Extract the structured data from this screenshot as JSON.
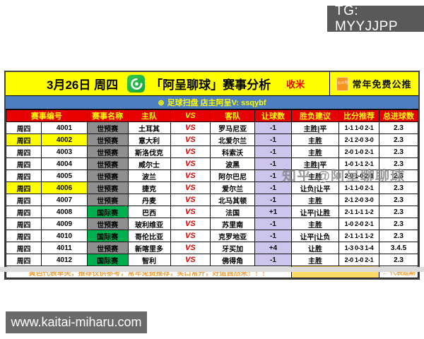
{
  "page": {
    "tg_badge": "TG: MYYJJPP",
    "site_badge": "www.kaitai-miharu.com",
    "watermark": "知乎 @阿呈聊聊球"
  },
  "header": {
    "date": "3月26日 周四",
    "logo": "football-swirl-logo",
    "title": "「阿呈聊球」赛事分析",
    "tag": "收米",
    "official_icon_label": "公众号",
    "right_label": "常年免费公推"
  },
  "subheader": {
    "icon": "⊛",
    "text": "足球扫盘   店主阿呈V: ssqybf"
  },
  "table": {
    "vs_label": "VS",
    "headers": {
      "match_no": "赛事编号",
      "league": "赛事名称",
      "home": "主队",
      "vs": "VS",
      "away": "客队",
      "handicap": "让球数",
      "advice": "胜负建议",
      "score": "比分推荐",
      "goals": "总进球数"
    },
    "rows": [
      {
        "day": "周四",
        "id": "4001",
        "category": "世预赛",
        "category_type": "gray",
        "home": "土耳其",
        "away": "罗马尼亚",
        "handicap": "-1",
        "advice": "主胜|平",
        "score": "1-1 1-0 2-1",
        "goals": "2.3",
        "highlight": false
      },
      {
        "day": "周四",
        "id": "4002",
        "category": "世预赛",
        "category_type": "gray",
        "home": "意大利",
        "away": "北爱尔兰",
        "handicap": "-1",
        "advice": "主胜",
        "score": "2-1 2-0 3-0",
        "goals": "2.3",
        "highlight": true
      },
      {
        "day": "周四",
        "id": "4003",
        "category": "世预赛",
        "category_type": "gray",
        "home": "斯洛伐克",
        "away": "科索沃",
        "handicap": "-1",
        "advice": "主胜",
        "score": "2-0 1-0 2-1",
        "goals": "2.3",
        "highlight": false
      },
      {
        "day": "周四",
        "id": "4004",
        "category": "世预赛",
        "category_type": "gray",
        "home": "威尔士",
        "away": "波黑",
        "handicap": "-1",
        "advice": "主胜|平",
        "score": "1-0 1-1 2-1",
        "goals": "2.3",
        "highlight": false
      },
      {
        "day": "周四",
        "id": "4005",
        "category": "世预赛",
        "category_type": "gray",
        "home": "波兰",
        "away": "阿尔巴尼",
        "handicap": "-1",
        "advice": "主胜",
        "score": "2-0 1-0 2-1",
        "goals": "2.3",
        "highlight": false
      },
      {
        "day": "周四",
        "id": "4006",
        "category": "世预赛",
        "category_type": "gray",
        "home": "捷克",
        "away": "爱尔兰",
        "handicap": "-1",
        "advice": "让负|让平",
        "score": "1-1 1-0 2-1",
        "goals": "2.3",
        "highlight": true
      },
      {
        "day": "周四",
        "id": "4007",
        "category": "世预赛",
        "category_type": "gray",
        "home": "丹麦",
        "away": "北马其顿",
        "handicap": "-1",
        "advice": "主胜",
        "score": "2-1 2-0 3-0",
        "goals": "2.3",
        "highlight": false
      },
      {
        "day": "周四",
        "id": "4008",
        "category": "国际赛",
        "category_type": "green",
        "home": "巴西",
        "away": "法国",
        "handicap": "+1",
        "advice": "让平|让胜",
        "score": "2-1 1-1 1-2",
        "goals": "2.3",
        "highlight": false
      },
      {
        "day": "周四",
        "id": "4009",
        "category": "世预赛",
        "category_type": "gray",
        "home": "玻利维亚",
        "away": "苏里南",
        "handicap": "-1",
        "advice": "主胜",
        "score": "1-0 2-0 2-1",
        "goals": "2.3",
        "highlight": false
      },
      {
        "day": "周四",
        "id": "4010",
        "category": "国际赛",
        "category_type": "green",
        "home": "哥伦比亚",
        "away": "克罗地亚",
        "handicap": "-1",
        "advice": "让平|让负",
        "score": "2-1 1-1 1-2",
        "goals": "2.3",
        "highlight": false
      },
      {
        "day": "周四",
        "id": "4011",
        "category": "世预赛",
        "category_type": "gray",
        "home": "新喀里多",
        "away": "牙买加",
        "handicap": "+4",
        "advice": "让胜",
        "score": "1-3 0-3 1-4",
        "goals": "3.4.5",
        "highlight": false
      },
      {
        "day": "周四",
        "id": "4012",
        "category": "国际赛",
        "category_type": "green",
        "home": "智利",
        "away": "佛得角",
        "handicap": "-1",
        "advice": "主胜",
        "score": "2-0 1-0 2-1",
        "goals": "2.3",
        "highlight": false
      }
    ],
    "footer": {
      "note": "黄色代表单关，推荐仅供参考，常年免费推荐，笑口常开，好运自然来！！！",
      "legend": "← 代表延期"
    }
  },
  "colors": {
    "header_band": "#ffff00",
    "sub_band": "#4d7ebf",
    "table_header": "#e60000",
    "handicap_cell": "#cdc5ec",
    "league_gray": "#8f8f8f",
    "league_green": "#00b050",
    "highlight": "#ffff00",
    "footer_orange": "#f2a03c",
    "delay_cell": "#ffd966"
  }
}
